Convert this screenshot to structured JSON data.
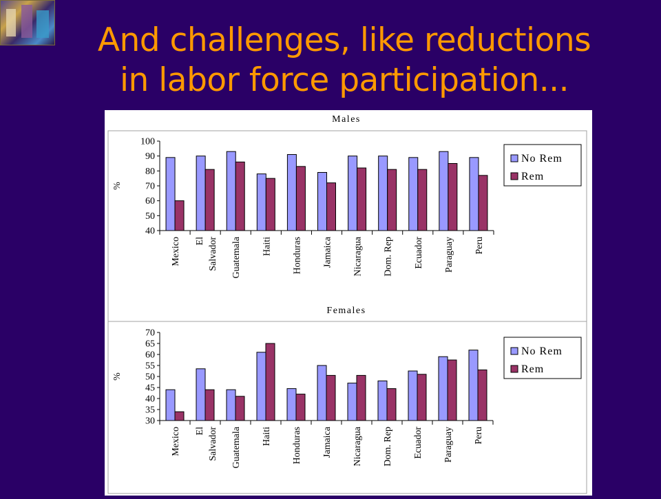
{
  "slide": {
    "title_line1": "And challenges, like reductions",
    "title_line2": "in labor force participation..."
  },
  "colors": {
    "background": "#2a0066",
    "title": "#ff9900",
    "no_rem": "#9999ff",
    "rem": "#993366"
  },
  "chart_data": [
    {
      "type": "bar",
      "title": "Males",
      "ylabel": "%",
      "ylim": [
        40,
        100
      ],
      "yticks": [
        40,
        50,
        60,
        70,
        80,
        90,
        100
      ],
      "categories": [
        "Mexico",
        "El Salvador",
        "Guatemala",
        "Haiti",
        "Honduras",
        "Jamaica",
        "Nicaragua",
        "Dom. Rep",
        "Ecuador",
        "Paraguay",
        "Peru"
      ],
      "series": [
        {
          "name": "No Rem",
          "values": [
            89,
            90,
            93,
            78,
            91,
            79,
            90,
            90,
            89,
            93,
            89
          ]
        },
        {
          "name": "Rem",
          "values": [
            60,
            81,
            86,
            75,
            83,
            72,
            82,
            81,
            81,
            85,
            77
          ]
        }
      ],
      "legend": "right"
    },
    {
      "type": "bar",
      "title": "Females",
      "ylabel": "%",
      "ylim": [
        30,
        70
      ],
      "yticks": [
        30,
        35,
        40,
        45,
        50,
        55,
        60,
        65,
        70
      ],
      "categories": [
        "Mexico",
        "El Salvador",
        "Guatemala",
        "Haiti",
        "Honduras",
        "Jamaica",
        "Nicaragua",
        "Dom. Rep",
        "Ecuador",
        "Paraguay",
        "Peru"
      ],
      "series": [
        {
          "name": "No Rem",
          "values": [
            44,
            53.5,
            44,
            61,
            44.5,
            55,
            47,
            48,
            52.5,
            59,
            62
          ]
        },
        {
          "name": "Rem",
          "values": [
            34,
            44,
            41,
            65,
            42,
            50.5,
            50.5,
            44.5,
            51,
            57.5,
            53
          ]
        }
      ],
      "legend": "right"
    }
  ]
}
